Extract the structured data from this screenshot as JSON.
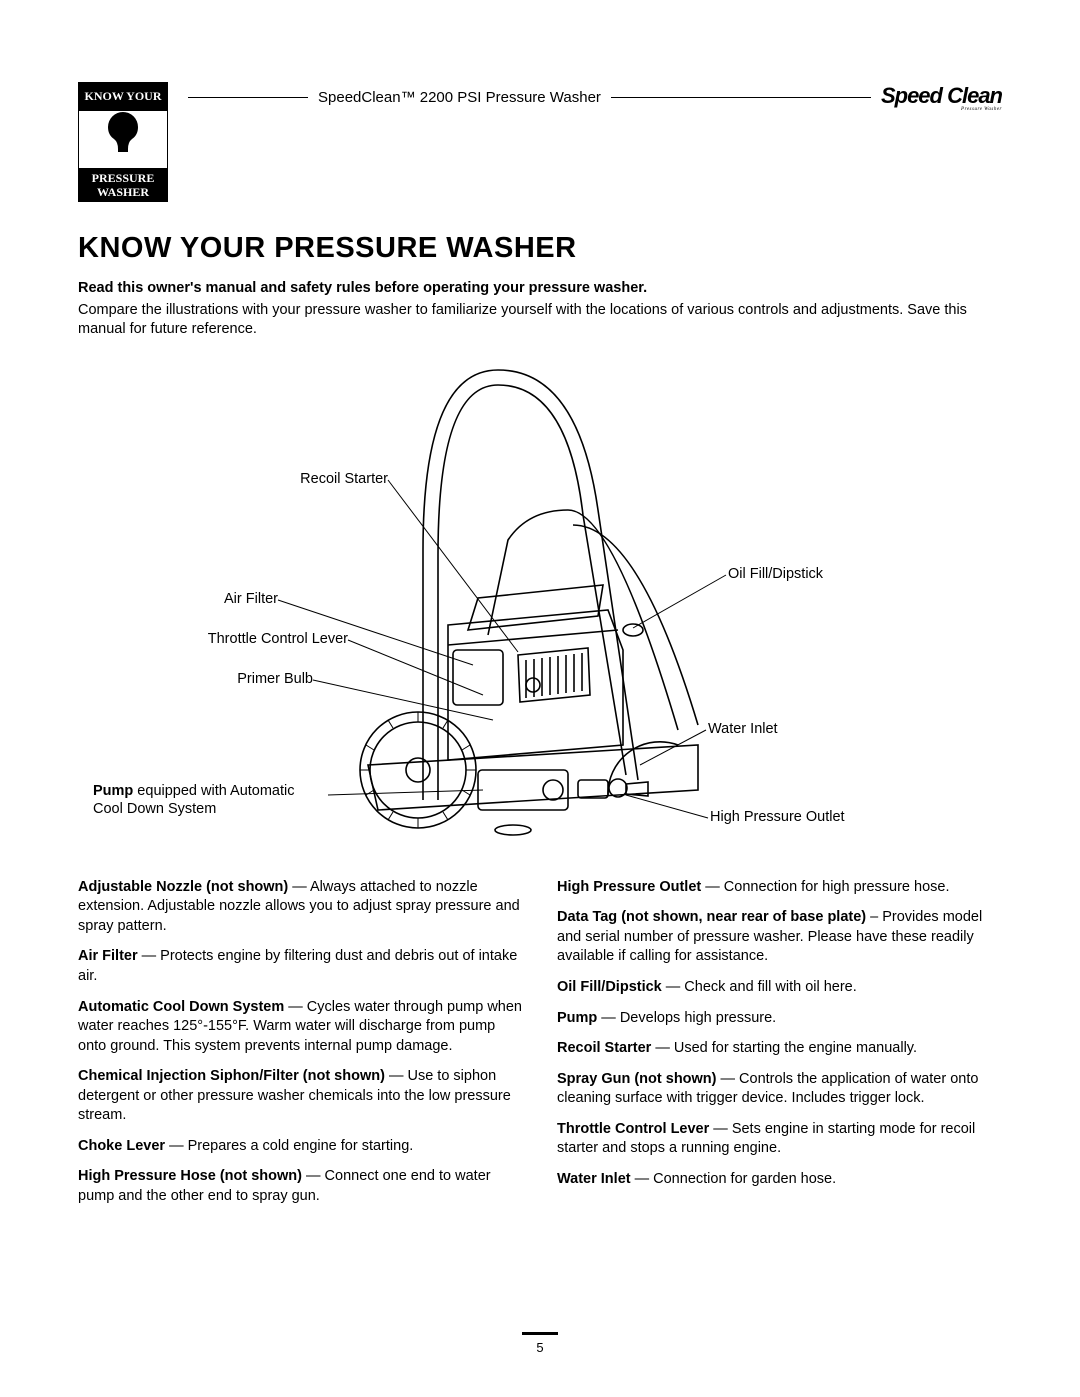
{
  "header": {
    "product_title": "SpeedClean™ 2200 PSI Pressure Washer",
    "brand": "Speed Clean",
    "brand_sub": "Pressure Washer",
    "badge_top": "KNOW YOUR",
    "badge_bottom_1": "PRESSURE",
    "badge_bottom_2": "WASHER"
  },
  "section": {
    "title": "KNOW YOUR PRESSURE WASHER",
    "intro_bold": "Read this owner's manual and safety rules before operating your pressure washer.",
    "intro_text": "Compare the illustrations with your pressure washer to familiarize yourself with the locations of various controls and adjustments. Save this manual for future reference."
  },
  "diagram": {
    "labels": {
      "recoil_starter": "Recoil Starter",
      "air_filter": "Air Filter",
      "throttle_control_lever": "Throttle Control Lever",
      "primer_bulb": "Primer Bulb",
      "pump_line1": "Pump",
      "pump_line2": " equipped with Automatic Cool Down System",
      "oil_fill": "Oil Fill/Dipstick",
      "water_inlet": "Water Inlet",
      "high_pressure_outlet": "High Pressure Outlet"
    },
    "colors": {
      "stroke": "#000000",
      "bg": "#ffffff"
    }
  },
  "descriptions": {
    "left": [
      {
        "term": "Adjustable Nozzle (not shown)",
        "sep": " — ",
        "text": "Always attached to nozzle extension. Adjustable nozzle allows you to adjust spray pressure and spray pattern."
      },
      {
        "term": "Air Filter",
        "sep": " — ",
        "text": "Protects engine by filtering dust and debris out of intake air."
      },
      {
        "term": "Automatic Cool Down System",
        "sep": " — ",
        "text": "Cycles water through pump when water reaches 125°-155°F. Warm water will discharge from pump onto ground. This system prevents internal pump damage."
      },
      {
        "term": "Chemical Injection Siphon/Filter (not shown)",
        "sep": " — ",
        "text": "Use to siphon detergent or other pressure washer chemicals into the low pressure stream."
      },
      {
        "term": "Choke Lever",
        "sep": " — ",
        "text": "Prepares a cold engine for starting."
      },
      {
        "term": "High Pressure Hose (not shown)",
        "sep": " — ",
        "text": "Connect one end to water pump and the other end to spray gun."
      }
    ],
    "right": [
      {
        "term": "High Pressure Outlet",
        "sep": " — ",
        "text": "Connection for high pressure hose."
      },
      {
        "term": "Data Tag (not shown, near rear of base plate)",
        "sep": " – ",
        "text": "Provides model and serial number of pressure washer. Please have these readily available if calling for assistance."
      },
      {
        "term": "Oil Fill/Dipstick",
        "sep": " — ",
        "text": "Check and fill with oil here."
      },
      {
        "term": "Pump",
        "sep": " — ",
        "text": "Develops high pressure."
      },
      {
        "term": "Recoil Starter",
        "sep": " — ",
        "text": "Used for starting the engine manually."
      },
      {
        "term": "Spray Gun (not shown)",
        "sep": " — ",
        "text": "Controls the application of water onto cleaning surface with trigger device. Includes trigger lock."
      },
      {
        "term": "Throttle Control Lever",
        "sep": " — ",
        "text": "Sets engine in starting mode for recoil starter and stops a running engine."
      },
      {
        "term": "Water Inlet",
        "sep": " — ",
        "text": "Connection for garden hose."
      }
    ]
  },
  "page_number": "5"
}
